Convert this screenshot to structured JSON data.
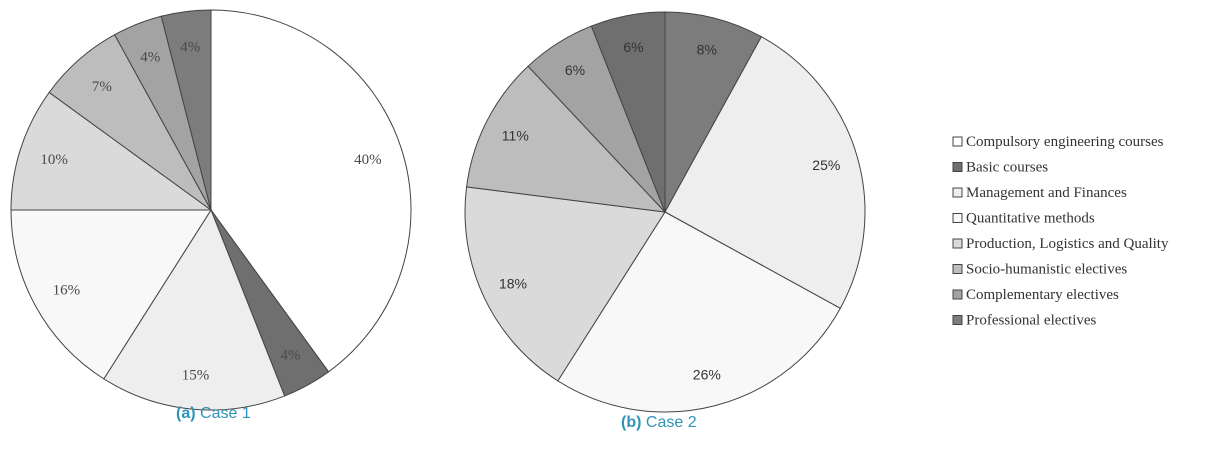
{
  "legend": [
    {
      "label": "Compulsory engineering courses",
      "color": "#ffffff"
    },
    {
      "label": "Basic courses",
      "color": "#6f6f6f"
    },
    {
      "label": "Management and Finances",
      "color": "#eeeeee"
    },
    {
      "label": "Quantitative methods",
      "color": "#f8f8f8"
    },
    {
      "label": "Production, Logistics and Quality",
      "color": "#dadada"
    },
    {
      "label": "Socio-humanistic electives",
      "color": "#bdbdbd"
    },
    {
      "label": "Complementary electives",
      "color": "#a3a3a3"
    },
    {
      "label": "Professional electives",
      "color": "#7c7c7c"
    }
  ],
  "chart_data": [
    {
      "type": "pie",
      "caption_tag": "(a)",
      "caption_text": "Case 1",
      "slices": [
        {
          "category": "Compulsory engineering courses",
          "value": 40,
          "label": "40%"
        },
        {
          "category": "Basic courses",
          "value": 4,
          "label": "4%"
        },
        {
          "category": "Management and Finances",
          "value": 15,
          "label": "15%"
        },
        {
          "category": "Quantitative methods",
          "value": 16,
          "label": "16%"
        },
        {
          "category": "Production, Logistics and Quality",
          "value": 10,
          "label": "10%"
        },
        {
          "category": "Socio-humanistic electives",
          "value": 7,
          "label": "7%"
        },
        {
          "category": "Complementary electives",
          "value": 4,
          "label": "4%"
        },
        {
          "category": "Professional electives",
          "value": 4,
          "label": "4%"
        }
      ]
    },
    {
      "type": "pie",
      "caption_tag": "(b)",
      "caption_text": "Case 2",
      "slices": [
        {
          "category": "Professional electives",
          "value": 8,
          "label": "8%"
        },
        {
          "category": "Management and Finances",
          "value": 25,
          "label": "25%"
        },
        {
          "category": "Quantitative methods",
          "value": 26,
          "label": "26%"
        },
        {
          "category": "Production, Logistics and Quality",
          "value": 18,
          "label": "18%"
        },
        {
          "category": "Socio-humanistic electives",
          "value": 11,
          "label": "11%"
        },
        {
          "category": "Complementary electives",
          "value": 6,
          "label": "6%"
        },
        {
          "category": "Basic courses",
          "value": 6,
          "label": "6%"
        }
      ]
    }
  ]
}
